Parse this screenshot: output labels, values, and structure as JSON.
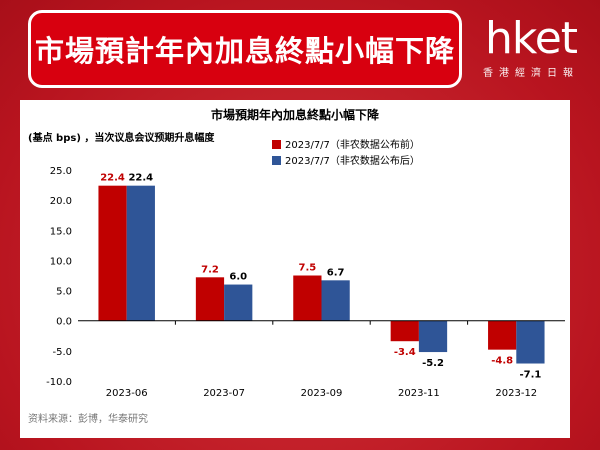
{
  "banner": {
    "title": "市場預計年內加息終點小幅下降"
  },
  "logo": {
    "word": "hket",
    "tagline": "香港經濟日報"
  },
  "colors": {
    "background": "#c3232c",
    "banner": "#d8000f",
    "series_before": "#c00000",
    "series_after": "#2f5597"
  },
  "chart_data": {
    "type": "bar",
    "title": "市場預期年內加息終點小幅下降",
    "ylabel": "(基点 bps) ，当次议息会议预期升息幅度",
    "categories": [
      "2023-06",
      "2023-07",
      "2023-09",
      "2023-11",
      "2023-12"
    ],
    "series": [
      {
        "name": "2023/7/7（非农数据公布前）",
        "values": [
          22.4,
          7.2,
          7.5,
          -3.4,
          -4.8
        ],
        "labels": [
          "22.4",
          "7.2",
          "7.5",
          "-3.4",
          "-4.8"
        ],
        "color": "#c00000"
      },
      {
        "name": "2023/7/7（非农数据公布后）",
        "values": [
          22.4,
          6.0,
          6.7,
          -5.2,
          -7.1
        ],
        "labels": [
          "22.4",
          "6.0",
          "6.7",
          "-5.2",
          "-7.1"
        ],
        "color": "#2f5597"
      }
    ],
    "yticks": [
      "25.0",
      "20.0",
      "15.0",
      "10.0",
      "5.0",
      "0.0",
      "-5.0",
      "-10.0"
    ],
    "ylim": [
      -10,
      25
    ],
    "grid": false,
    "legend": "top-right",
    "source": "资料来源：彭博，华泰研究"
  }
}
